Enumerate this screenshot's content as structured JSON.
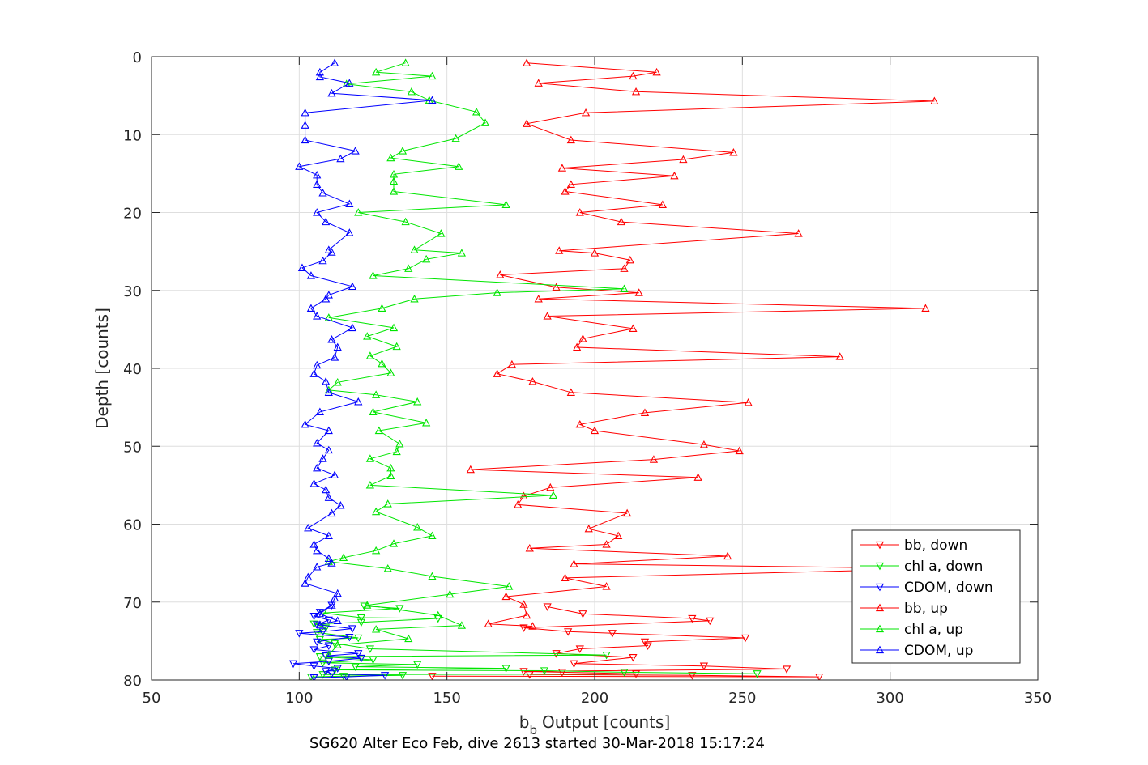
{
  "chart_data": {
    "type": "line",
    "xlabel": "Output [counts]",
    "xlabel_prefix_main": "b",
    "xlabel_prefix_sub": "b",
    "ylabel": "Depth [counts]",
    "caption": "SG620 Alter Eco Feb, dive 2613 started 30-Mar-2018 15:17:24",
    "xlim": [
      50,
      350
    ],
    "ylim": [
      0,
      80
    ],
    "y_reversed": true,
    "xticks": [
      50,
      100,
      150,
      200,
      250,
      300,
      350
    ],
    "yticks": [
      0,
      10,
      20,
      30,
      40,
      50,
      60,
      70,
      80
    ],
    "grid": true,
    "legend_position": "lower-right",
    "series": [
      {
        "name": "bb, down",
        "color": "#ff0000",
        "marker": "triangle-down",
        "x": [
          184,
          196,
          233,
          239,
          176,
          191,
          206,
          251,
          217,
          218,
          195,
          187,
          213,
          193,
          237,
          265,
          176,
          189,
          214,
          178,
          233,
          276,
          145
        ],
        "y": [
          70.6,
          71.5,
          72.1,
          72.4,
          73.3,
          73.8,
          74.0,
          74.6,
          75.1,
          75.6,
          76.0,
          76.6,
          77.1,
          77.9,
          78.2,
          78.6,
          78.9,
          79.0,
          79.2,
          79.3,
          79.4,
          79.6,
          79.5
        ]
      },
      {
        "name": "chl a, down",
        "color": "#00e600",
        "marker": "triangle-down",
        "x": [
          122,
          134,
          108,
          121,
          147,
          121,
          105,
          109,
          106,
          120,
          107,
          112,
          124,
          204,
          107,
          125,
          108,
          140,
          119,
          170,
          112,
          183,
          210,
          255,
          108,
          135,
          115,
          104
        ],
        "y": [
          70.5,
          70.8,
          71.4,
          72.0,
          72.1,
          72.6,
          72.8,
          73.3,
          73.9,
          74.6,
          74.8,
          75.3,
          76.0,
          76.8,
          77.0,
          77.4,
          77.8,
          78.0,
          78.3,
          78.5,
          78.7,
          78.8,
          79.0,
          79.2,
          79.3,
          79.4,
          79.5,
          79.6
        ]
      },
      {
        "name": "CDOM, down",
        "color": "#0000ff",
        "marker": "triangle-down",
        "x": [
          111,
          107,
          105,
          110,
          106,
          118,
          108,
          100,
          117,
          106,
          110,
          105,
          120,
          109,
          121,
          110,
          98,
          105,
          113,
          109,
          111,
          129,
          116,
          105
        ],
        "y": [
          70.4,
          71.3,
          71.8,
          72.3,
          72.9,
          73.4,
          73.8,
          74.0,
          74.5,
          75.1,
          75.6,
          76.1,
          76.6,
          76.9,
          77.2,
          77.6,
          77.9,
          78.2,
          78.5,
          78.9,
          79.2,
          79.4,
          79.6,
          79.7
        ]
      },
      {
        "name": "bb, up",
        "color": "#ff0000",
        "marker": "triangle-up",
        "x": [
          177,
          221,
          213,
          181,
          214,
          315,
          197,
          177,
          192,
          247,
          230,
          189,
          227,
          192,
          190,
          223,
          195,
          209,
          269,
          188,
          200,
          212,
          210,
          168,
          187,
          215,
          181,
          312,
          184,
          213,
          196,
          194,
          283,
          172,
          167,
          179,
          192,
          252,
          217,
          195,
          200,
          237,
          249,
          220,
          158,
          235,
          185,
          176,
          174,
          211,
          198,
          208,
          204,
          178,
          245,
          193,
          317,
          190,
          204,
          170,
          176,
          177,
          164,
          179
        ],
        "y": [
          0.8,
          2.0,
          2.5,
          3.4,
          4.5,
          5.7,
          7.2,
          8.6,
          10.7,
          12.3,
          13.2,
          14.3,
          15.3,
          16.4,
          17.3,
          19.0,
          20.0,
          21.2,
          22.7,
          24.9,
          25.2,
          26.1,
          27.2,
          28.0,
          29.6,
          30.3,
          31.1,
          32.3,
          33.3,
          34.9,
          36.2,
          37.3,
          38.5,
          39.5,
          40.7,
          41.7,
          43.1,
          44.4,
          45.7,
          47.2,
          48.0,
          49.8,
          50.6,
          51.7,
          53.0,
          54.0,
          55.3,
          56.4,
          57.5,
          58.6,
          60.6,
          61.5,
          62.6,
          63.1,
          64.1,
          65.1,
          65.7,
          66.9,
          68.0,
          69.3,
          70.3,
          71.7,
          72.8,
          73.1
        ]
      },
      {
        "name": "chl a, up",
        "color": "#00e600",
        "marker": "triangle-up",
        "x": [
          136,
          126,
          145,
          116,
          138,
          144,
          160,
          163,
          153,
          135,
          131,
          154,
          132,
          132,
          132,
          170,
          120,
          136,
          148,
          139,
          155,
          143,
          137,
          125,
          210,
          167,
          139,
          128,
          110,
          132,
          123,
          133,
          124,
          128,
          131,
          113,
          110,
          126,
          140,
          125,
          143,
          127,
          134,
          133,
          124,
          131,
          131,
          124,
          186,
          130,
          126,
          140,
          145,
          132,
          126,
          115,
          110,
          130,
          145,
          171,
          151,
          123,
          147,
          155,
          126,
          137,
          113,
          110
        ],
        "y": [
          0.8,
          2.0,
          2.5,
          3.5,
          4.5,
          5.6,
          7.1,
          8.5,
          10.5,
          12.1,
          13.0,
          14.1,
          15.1,
          16.0,
          17.3,
          19.0,
          20.0,
          21.2,
          22.7,
          24.8,
          25.2,
          26.0,
          27.2,
          28.1,
          29.8,
          30.3,
          31.1,
          32.3,
          33.5,
          34.8,
          35.9,
          37.2,
          38.4,
          39.4,
          40.6,
          41.8,
          42.8,
          43.4,
          44.3,
          45.6,
          47.0,
          48.0,
          49.7,
          50.7,
          51.6,
          52.8,
          53.8,
          55.0,
          56.3,
          57.4,
          58.4,
          60.4,
          61.5,
          62.5,
          63.4,
          64.3,
          64.8,
          65.7,
          66.7,
          68.0,
          69.0,
          70.4,
          71.7,
          73.0,
          73.5,
          74.7,
          75.5,
          76.8
        ]
      },
      {
        "name": "CDOM, up",
        "color": "#0000ff",
        "marker": "triangle-up",
        "x": [
          112,
          107,
          107,
          117,
          111,
          145,
          102,
          102,
          102,
          119,
          114,
          100,
          106,
          106,
          108,
          117,
          106,
          109,
          117,
          110,
          111,
          108,
          101,
          104,
          118,
          110,
          109,
          104,
          106,
          118,
          111,
          113,
          112,
          106,
          105,
          109,
          110,
          120,
          107,
          102,
          110,
          106,
          110,
          108,
          106,
          112,
          105,
          109,
          110,
          114,
          111,
          103,
          110,
          105,
          106,
          110,
          111,
          106,
          103,
          102,
          113,
          112,
          111,
          107,
          113,
          107
        ],
        "y": [
          0.8,
          2.0,
          2.6,
          3.4,
          4.7,
          5.6,
          7.2,
          8.8,
          10.7,
          12.1,
          13.1,
          14.1,
          15.2,
          16.4,
          17.5,
          18.9,
          20.0,
          21.2,
          22.6,
          24.8,
          25.1,
          26.2,
          27.1,
          28.1,
          29.5,
          30.6,
          31.1,
          32.3,
          33.3,
          34.8,
          36.3,
          37.3,
          38.6,
          39.6,
          40.7,
          41.7,
          43.1,
          44.3,
          45.6,
          47.2,
          48.0,
          49.6,
          50.5,
          51.6,
          52.8,
          53.7,
          54.8,
          55.6,
          56.6,
          57.6,
          58.6,
          60.5,
          61.5,
          62.6,
          63.4,
          64.4,
          65.0,
          65.5,
          66.8,
          67.6,
          68.9,
          69.5,
          70.4,
          71.5,
          72.4,
          72.9
        ]
      }
    ]
  }
}
